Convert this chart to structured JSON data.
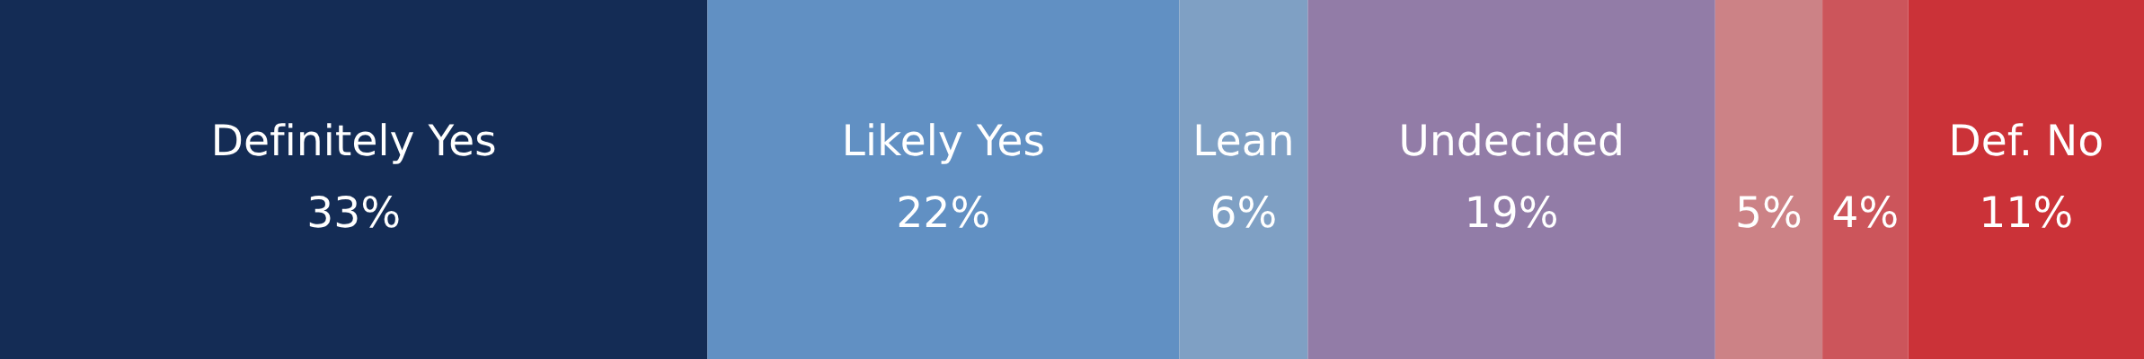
{
  "chart_data": {
    "type": "bar",
    "stacked": true,
    "orientation": "horizontal",
    "categories": [
      null
    ],
    "xlim": [
      0,
      100
    ],
    "legend": false,
    "series": [
      {
        "name": "Definitely Yes",
        "color": "#142c55",
        "values": [
          33
        ],
        "value_labels": [
          "33%"
        ]
      },
      {
        "name": "Likely Yes",
        "color": "#6190c3",
        "values": [
          22
        ],
        "value_labels": [
          "22%"
        ]
      },
      {
        "name": "Lean",
        "color": "#7fa0c4",
        "values": [
          6
        ],
        "value_labels": [
          "6%"
        ]
      },
      {
        "name": "Undecided",
        "color": "#927ca7",
        "values": [
          19
        ],
        "value_labels": [
          "19%"
        ]
      },
      {
        "color": "#cc8286",
        "values": [
          5
        ],
        "value_labels": [
          "5%"
        ]
      },
      {
        "color": "#cc555b",
        "values": [
          4
        ],
        "value_labels": [
          "4%"
        ]
      },
      {
        "name": "Def. No",
        "color": "#cb3238",
        "values": [
          11
        ],
        "value_labels": [
          "11%"
        ]
      }
    ]
  }
}
